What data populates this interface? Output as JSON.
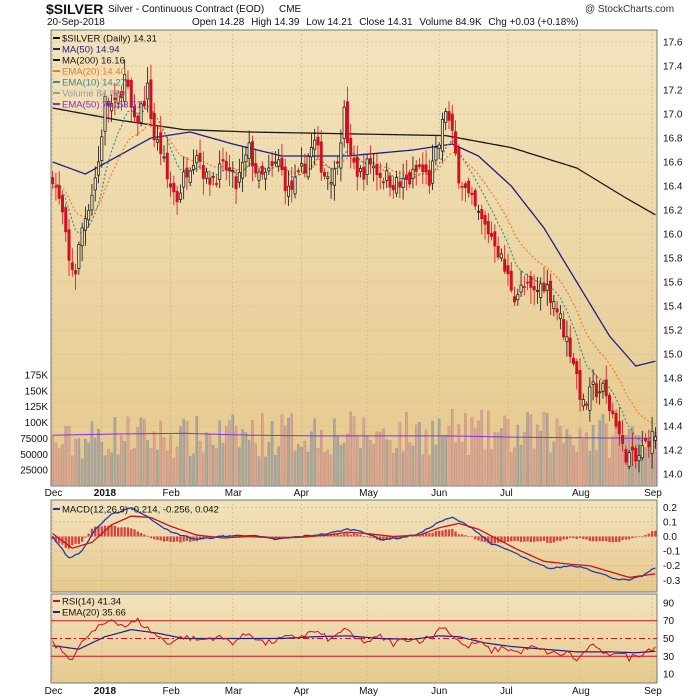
{
  "header": {
    "symbol": "$SILVER",
    "description": "Silver - Continuous Contract (EOD)",
    "exchange": "CME",
    "copyright": "@ StockCharts.com",
    "date": "20-Sep-2018",
    "ohlc": {
      "open_label": "Open",
      "open": "14.28",
      "high_label": "High",
      "high": "14.39",
      "low_label": "Low",
      "low": "14.21",
      "close_label": "Close",
      "close": "14.31",
      "volume_label": "Volume",
      "volume": "84.9K",
      "chg_label": "Chg",
      "chg": "+0.03 (+0.18%)"
    }
  },
  "colors": {
    "panel_bg": "#e5c98d",
    "up_candle": "#111111",
    "down_candle": "#d01020",
    "ma50": "#1c1f8c",
    "ma200": "#1a1a1a",
    "ema20": "#f07a1a",
    "ema10": "#3a8a8a",
    "vol_ema50": "#8a2be2",
    "vol_up": "#a8a8a0",
    "vol_down": "#e2a090",
    "macd": "#1b3fa8",
    "macd_signal": "#d01020",
    "macd_hist": "#d01020",
    "rsi": "#d01020",
    "rsi_ema": "#1c1f8c",
    "rsi_band": "#d01020"
  },
  "chart_data": [
    {
      "type": "candlestick",
      "title": "$SILVER (Daily) 14.31",
      "legend": [
        {
          "label": "$SILVER (Daily) 14.31",
          "color": "#111111"
        },
        {
          "label": "MA(50) 14.94",
          "color": "#1c1f8c"
        },
        {
          "label": "MA(200) 16.16",
          "color": "#1a1a1a"
        },
        {
          "label": "EMA(20) 14.40",
          "color": "#f07a1a"
        },
        {
          "label": "EMA(10) 14.27",
          "color": "#3a8a8a"
        },
        {
          "label": "Volume 84,869",
          "color": "#999999"
        },
        {
          "label": "EMA(50) 75153.51",
          "color": "#8a2be2"
        }
      ],
      "legend_placement": "top-left",
      "x_tick_labels": [
        "Dec",
        "2018",
        "Feb",
        "Mar",
        "Apr",
        "May",
        "Jun",
        "Jul",
        "Aug",
        "Sep"
      ],
      "x_tick_positions": [
        0,
        15,
        36,
        55,
        76,
        96,
        118,
        139,
        161,
        183
      ],
      "y_price_ticks": [
        "17.6",
        "17.4",
        "17.2",
        "17.0",
        "16.8",
        "16.6",
        "16.4",
        "16.2",
        "16.0",
        "15.8",
        "15.6",
        "15.4",
        "15.2",
        "15.0",
        "14.8",
        "14.6",
        "14.4",
        "14.2",
        "14.0"
      ],
      "ylim_price": [
        13.9,
        17.7
      ],
      "y_volume_ticks": [
        "175K",
        "150K",
        "125K",
        "100K",
        "75000",
        "50000",
        "25000"
      ],
      "ylim_volume": [
        0,
        230000
      ],
      "grid": true,
      "price_anchors": [
        [
          0,
          16.5
        ],
        [
          3,
          16.15
        ],
        [
          5,
          15.75
        ],
        [
          7,
          15.7
        ],
        [
          9,
          16.05
        ],
        [
          12,
          16.35
        ],
        [
          14,
          16.6
        ],
        [
          16,
          17.1
        ],
        [
          19,
          17.05
        ],
        [
          22,
          17.3
        ],
        [
          25,
          16.9
        ],
        [
          27,
          17.05
        ],
        [
          29,
          17.2
        ],
        [
          31,
          16.8
        ],
        [
          33,
          16.7
        ],
        [
          35,
          16.45
        ],
        [
          38,
          16.3
        ],
        [
          41,
          16.55
        ],
        [
          44,
          16.7
        ],
        [
          47,
          16.45
        ],
        [
          50,
          16.5
        ],
        [
          53,
          16.55
        ],
        [
          56,
          16.4
        ],
        [
          60,
          16.7
        ],
        [
          63,
          16.45
        ],
        [
          66,
          16.5
        ],
        [
          69,
          16.6
        ],
        [
          72,
          16.35
        ],
        [
          75,
          16.45
        ],
        [
          78,
          16.65
        ],
        [
          80,
          16.75
        ],
        [
          83,
          16.5
        ],
        [
          86,
          16.5
        ],
        [
          89,
          17.0
        ],
        [
          91,
          16.6
        ],
        [
          94,
          16.5
        ],
        [
          97,
          16.6
        ],
        [
          100,
          16.5
        ],
        [
          103,
          16.45
        ],
        [
          106,
          16.4
        ],
        [
          109,
          16.45
        ],
        [
          112,
          16.55
        ],
        [
          115,
          16.45
        ],
        [
          118,
          16.75
        ],
        [
          120,
          17.05
        ],
        [
          122,
          16.8
        ],
        [
          124,
          16.5
        ],
        [
          127,
          16.3
        ],
        [
          131,
          16.1
        ],
        [
          135,
          15.95
        ],
        [
          138,
          15.7
        ],
        [
          141,
          15.5
        ],
        [
          144,
          15.55
        ],
        [
          147,
          15.5
        ],
        [
          150,
          15.6
        ],
        [
          153,
          15.45
        ],
        [
          156,
          15.2
        ],
        [
          159,
          14.95
        ],
        [
          162,
          14.55
        ],
        [
          165,
          14.7
        ],
        [
          168,
          14.7
        ],
        [
          170,
          14.55
        ],
        [
          172,
          14.45
        ],
        [
          174,
          14.2
        ],
        [
          176,
          14.15
        ],
        [
          178,
          14.1
        ],
        [
          180,
          14.2
        ],
        [
          182,
          14.3
        ],
        [
          184,
          14.3
        ]
      ],
      "ma50_anchors": [
        [
          0,
          16.6
        ],
        [
          10,
          16.5
        ],
        [
          20,
          16.65
        ],
        [
          30,
          16.8
        ],
        [
          42,
          16.85
        ],
        [
          55,
          16.75
        ],
        [
          70,
          16.65
        ],
        [
          90,
          16.65
        ],
        [
          110,
          16.7
        ],
        [
          122,
          16.75
        ],
        [
          130,
          16.65
        ],
        [
          140,
          16.4
        ],
        [
          150,
          16.05
        ],
        [
          160,
          15.6
        ],
        [
          170,
          15.15
        ],
        [
          178,
          14.9
        ],
        [
          184,
          14.94
        ]
      ],
      "ma200_anchors": [
        [
          0,
          17.05
        ],
        [
          20,
          16.95
        ],
        [
          40,
          16.87
        ],
        [
          60,
          16.85
        ],
        [
          80,
          16.84
        ],
        [
          100,
          16.83
        ],
        [
          120,
          16.82
        ],
        [
          140,
          16.72
        ],
        [
          160,
          16.55
        ],
        [
          175,
          16.3
        ],
        [
          184,
          16.16
        ]
      ],
      "volume_anchors": [
        [
          0,
          65000
        ],
        [
          20,
          80000
        ],
        [
          40,
          75000
        ],
        [
          60,
          80000
        ],
        [
          80,
          85000
        ],
        [
          100,
          80000
        ],
        [
          120,
          85000
        ],
        [
          140,
          80000
        ],
        [
          160,
          85000
        ],
        [
          175,
          75000
        ],
        [
          184,
          84869
        ]
      ],
      "volume_ema50_anchors": [
        [
          0,
          80000
        ],
        [
          20,
          82000
        ],
        [
          40,
          83000
        ],
        [
          60,
          80000
        ],
        [
          80,
          79000
        ],
        [
          100,
          79000
        ],
        [
          120,
          79000
        ],
        [
          140,
          77000
        ],
        [
          160,
          76000
        ],
        [
          184,
          75153.51
        ]
      ]
    },
    {
      "type": "line",
      "title": "MACD(12,26,9) -0.214, -0.256, 0.042",
      "legend": [
        {
          "label": "MACD(12,26,9) -0.214, -0.256, 0.042",
          "color": "#1b3fa8"
        }
      ],
      "y_ticks": [
        "0.2",
        "0.1",
        "0.0",
        "-0.1",
        "-0.2",
        "-0.3"
      ],
      "ylim": [
        -0.38,
        0.25
      ],
      "macd_anchors": [
        [
          0,
          0.0
        ],
        [
          5,
          -0.15
        ],
        [
          9,
          -0.1
        ],
        [
          13,
          0.05
        ],
        [
          18,
          0.15
        ],
        [
          24,
          0.2
        ],
        [
          30,
          0.12
        ],
        [
          36,
          0.03
        ],
        [
          44,
          -0.02
        ],
        [
          52,
          0.0
        ],
        [
          60,
          0.01
        ],
        [
          68,
          -0.02
        ],
        [
          76,
          0.0
        ],
        [
          84,
          0.02
        ],
        [
          90,
          0.05
        ],
        [
          94,
          0.04
        ],
        [
          100,
          -0.02
        ],
        [
          106,
          -0.01
        ],
        [
          112,
          0.02
        ],
        [
          118,
          0.1
        ],
        [
          122,
          0.13
        ],
        [
          128,
          0.06
        ],
        [
          134,
          -0.05
        ],
        [
          140,
          -0.1
        ],
        [
          146,
          -0.17
        ],
        [
          152,
          -0.22
        ],
        [
          158,
          -0.2
        ],
        [
          162,
          -0.21
        ],
        [
          168,
          -0.26
        ],
        [
          172,
          -0.29
        ],
        [
          176,
          -0.3
        ],
        [
          180,
          -0.27
        ],
        [
          184,
          -0.214
        ]
      ],
      "signal_anchors": [
        [
          0,
          0.02
        ],
        [
          6,
          -0.08
        ],
        [
          12,
          -0.04
        ],
        [
          18,
          0.08
        ],
        [
          24,
          0.14
        ],
        [
          30,
          0.13
        ],
        [
          36,
          0.07
        ],
        [
          44,
          0.01
        ],
        [
          52,
          -0.01
        ],
        [
          60,
          0.0
        ],
        [
          68,
          -0.01
        ],
        [
          76,
          -0.005
        ],
        [
          84,
          0.01
        ],
        [
          90,
          0.03
        ],
        [
          96,
          0.02
        ],
        [
          104,
          0.0
        ],
        [
          112,
          0.01
        ],
        [
          118,
          0.06
        ],
        [
          124,
          0.09
        ],
        [
          130,
          0.05
        ],
        [
          136,
          -0.02
        ],
        [
          142,
          -0.09
        ],
        [
          150,
          -0.17
        ],
        [
          158,
          -0.19
        ],
        [
          164,
          -0.2
        ],
        [
          170,
          -0.24
        ],
        [
          176,
          -0.28
        ],
        [
          184,
          -0.256
        ]
      ]
    },
    {
      "type": "line",
      "title": "RSI(14) 41.34",
      "legend": [
        {
          "label": "RSI(14) 41.34",
          "color": "#d01020"
        },
        {
          "label": "EMA(20) 35.66",
          "color": "#1c1f8c"
        }
      ],
      "y_ticks": [
        "90",
        "70",
        "50",
        "30",
        "10"
      ],
      "ylim": [
        0,
        100
      ],
      "bands": [
        70,
        50,
        30
      ],
      "rsi_anchors": [
        [
          0,
          45
        ],
        [
          4,
          32
        ],
        [
          6,
          28
        ],
        [
          10,
          50
        ],
        [
          14,
          62
        ],
        [
          18,
          72
        ],
        [
          22,
          64
        ],
        [
          26,
          70
        ],
        [
          30,
          58
        ],
        [
          35,
          45
        ],
        [
          40,
          52
        ],
        [
          45,
          48
        ],
        [
          50,
          52
        ],
        [
          55,
          46
        ],
        [
          60,
          56
        ],
        [
          65,
          44
        ],
        [
          70,
          50
        ],
        [
          75,
          52
        ],
        [
          80,
          58
        ],
        [
          85,
          48
        ],
        [
          89,
          62
        ],
        [
          92,
          50
        ],
        [
          96,
          46
        ],
        [
          100,
          52
        ],
        [
          104,
          44
        ],
        [
          108,
          50
        ],
        [
          112,
          48
        ],
        [
          116,
          52
        ],
        [
          119,
          65
        ],
        [
          122,
          54
        ],
        [
          126,
          40
        ],
        [
          130,
          46
        ],
        [
          134,
          36
        ],
        [
          138,
          40
        ],
        [
          142,
          34
        ],
        [
          146,
          40
        ],
        [
          150,
          36
        ],
        [
          154,
          32
        ],
        [
          158,
          34
        ],
        [
          160,
          24
        ],
        [
          163,
          38
        ],
        [
          166,
          42
        ],
        [
          168,
          30
        ],
        [
          172,
          36
        ],
        [
          176,
          28
        ],
        [
          180,
          34
        ],
        [
          184,
          41.34
        ]
      ],
      "rsi_ema_anchors": [
        [
          0,
          42
        ],
        [
          8,
          38
        ],
        [
          16,
          52
        ],
        [
          24,
          60
        ],
        [
          32,
          56
        ],
        [
          40,
          50
        ],
        [
          50,
          50
        ],
        [
          60,
          50
        ],
        [
          70,
          50
        ],
        [
          80,
          52
        ],
        [
          90,
          53
        ],
        [
          100,
          50
        ],
        [
          110,
          49
        ],
        [
          118,
          53
        ],
        [
          124,
          52
        ],
        [
          132,
          45
        ],
        [
          140,
          41
        ],
        [
          150,
          38
        ],
        [
          160,
          35
        ],
        [
          170,
          35
        ],
        [
          178,
          34
        ],
        [
          184,
          35.66
        ]
      ]
    }
  ]
}
